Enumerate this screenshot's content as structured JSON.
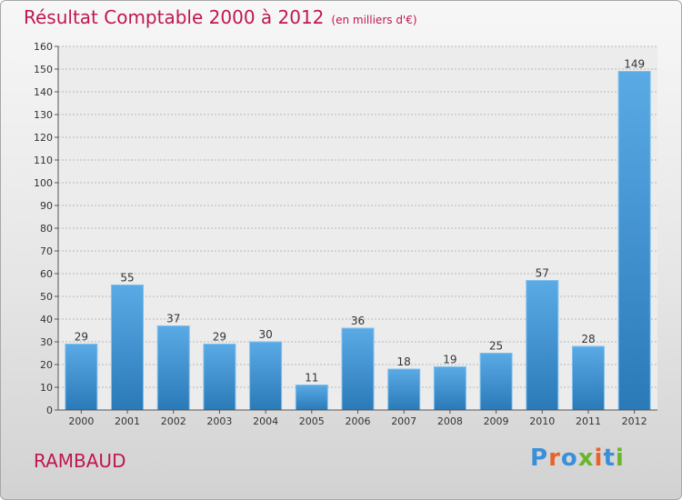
{
  "header": {
    "title": "Résultat Comptable 2000 à 2012",
    "unit": "(en milliers d'€)"
  },
  "footer": {
    "place": "RAMBAUD",
    "logo": "Proxiti"
  },
  "colors": {
    "title": "#c0174f",
    "bar_top": "#5aaae6",
    "bar_bottom": "#2b7ab8",
    "logo": [
      "#3b8fd9",
      "#e8632b",
      "#3b8fd9",
      "#6bb52b",
      "#e8632b",
      "#3b8fd9",
      "#6bb52b"
    ]
  },
  "chart_data": {
    "type": "bar",
    "title": "Résultat Comptable 2000 à 2012",
    "subtitle": "(en milliers d'€)",
    "categories": [
      "2000",
      "2001",
      "2002",
      "2003",
      "2004",
      "2005",
      "2006",
      "2007",
      "2008",
      "2009",
      "2010",
      "2011",
      "2012"
    ],
    "values": [
      29,
      55,
      37,
      29,
      30,
      11,
      36,
      18,
      19,
      25,
      57,
      28,
      149
    ],
    "ylim": [
      0,
      160
    ],
    "yticks": [
      0,
      10,
      20,
      30,
      40,
      50,
      60,
      70,
      80,
      90,
      100,
      110,
      120,
      130,
      140,
      150,
      160
    ],
    "xlabel": "",
    "ylabel": "",
    "grid": true
  }
}
